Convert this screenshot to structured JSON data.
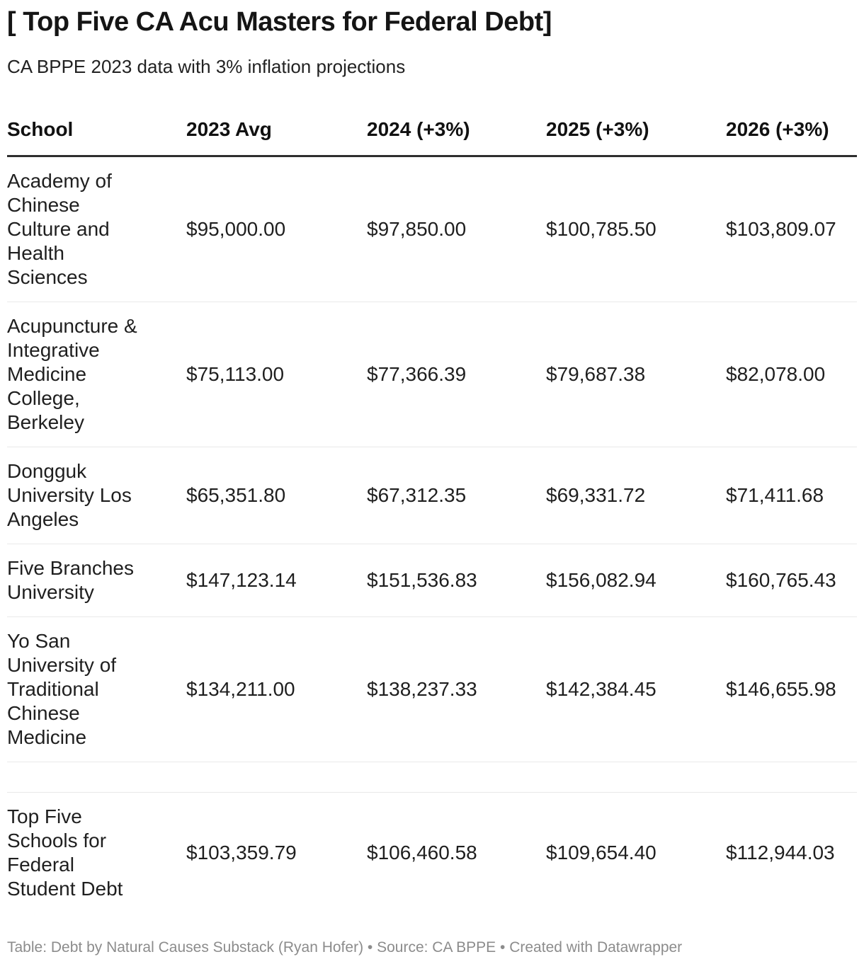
{
  "colors": {
    "background": "#ffffff",
    "title_text": "#151515",
    "body_text": "#1f1f1f",
    "header_border": "#2e2e2e",
    "row_divider": "#e9e9e9",
    "footer_text": "#8c8c8c"
  },
  "chart_data": {
    "type": "table",
    "title": "[ Top Five CA Acu Masters for Federal Debt]",
    "subtitle": "CA BPPE 2023 data with 3% inflation projections",
    "columns": [
      "School",
      "2023 Avg",
      "2024 (+3%)",
      "2025 (+3%)",
      "2026 (+3%)"
    ],
    "rows": [
      {
        "school": "Academy of\nChinese\nCulture and\nHealth\nSciences",
        "values": [
          "$95,000.00",
          "$97,850.00",
          "$100,785.50",
          "$103,809.07"
        ]
      },
      {
        "school": "Acupuncture &\nIntegrative\nMedicine\nCollege,\nBerkeley",
        "values": [
          "$75,113.00",
          "$77,366.39",
          "$79,687.38",
          "$82,078.00"
        ]
      },
      {
        "school": "Dongguk\nUniversity Los\nAngeles",
        "values": [
          "$65,351.80",
          "$67,312.35",
          "$69,331.72",
          "$71,411.68"
        ]
      },
      {
        "school": "Five Branches\nUniversity",
        "values": [
          "$147,123.14",
          "$151,536.83",
          "$156,082.94",
          "$160,765.43"
        ]
      },
      {
        "school": "Yo San\nUniversity of\nTraditional\nChinese\nMedicine",
        "values": [
          "$134,211.00",
          "$138,237.33",
          "$142,384.45",
          "$146,655.98"
        ]
      },
      {
        "school": "",
        "values": [
          "",
          "",
          "",
          ""
        ]
      },
      {
        "school": "Top Five\nSchools for\nFederal\nStudent Debt",
        "values": [
          "$103,359.79",
          "$106,460.58",
          "$109,654.40",
          "$112,944.03"
        ]
      }
    ],
    "layout": {
      "grid": "horizontal row dividers only",
      "value_alignment": "left",
      "header_style": "bold with thick dark bottom border"
    }
  },
  "footer": {
    "prefix": "Table: ",
    "byline": "Debt by Natural Causes Substack (Ryan Hofer)",
    "source_prefix": " • Source: ",
    "source": "CA BPPE",
    "separator": " • ",
    "attribution": "Created with Datawrapper"
  }
}
